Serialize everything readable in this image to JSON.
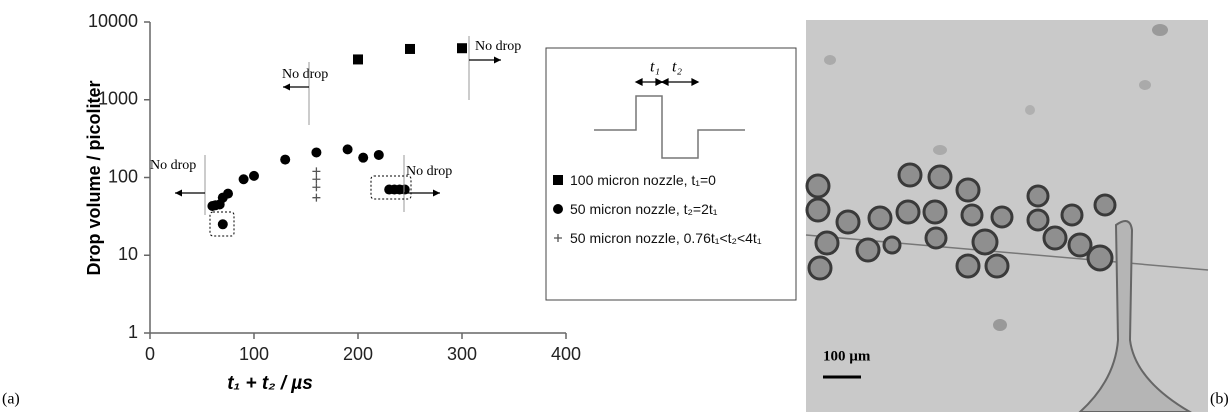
{
  "chart_data": {
    "type": "scatter",
    "xlabel": "t₁ + t₂ / µs",
    "ylabel": "Drop volume / picoliter",
    "xlim": [
      0,
      400
    ],
    "xticks": [
      0,
      100,
      200,
      300,
      400
    ],
    "ylim": [
      1,
      10000
    ],
    "yticks": [
      1,
      10,
      100,
      1000,
      10000
    ],
    "log_y": true,
    "grid": false,
    "series": [
      {
        "name": "100 micron nozzle, t₁=0",
        "marker": "square",
        "color": "#000000",
        "x": [
          200,
          250,
          300
        ],
        "values": [
          3300,
          4500,
          4600
        ]
      },
      {
        "name": "50 micron nozzle, t₂=2t₁",
        "marker": "circle",
        "color": "#000000",
        "x": [
          60,
          63,
          67,
          70,
          75,
          90,
          100,
          130,
          160,
          190,
          205,
          220,
          70,
          230,
          235,
          240,
          245
        ],
        "values": [
          43,
          44,
          45,
          55,
          62,
          95,
          105,
          170,
          210,
          230,
          180,
          195,
          25,
          70,
          70,
          70,
          70
        ]
      },
      {
        "name": "50 micron nozzle, 0.76t₁<t₂<4t₁",
        "marker": "plus",
        "color": "#555555",
        "x": [
          160,
          160,
          160,
          160
        ],
        "values": [
          120,
          95,
          75,
          55
        ]
      }
    ],
    "annotations": [
      "No drop",
      "No drop",
      "No drop",
      "No drop"
    ],
    "waveform_labels": [
      "t₁",
      "t₂"
    ],
    "panel_labels": [
      "(a)",
      "(b)"
    ],
    "scale_bar": "100 µm"
  }
}
